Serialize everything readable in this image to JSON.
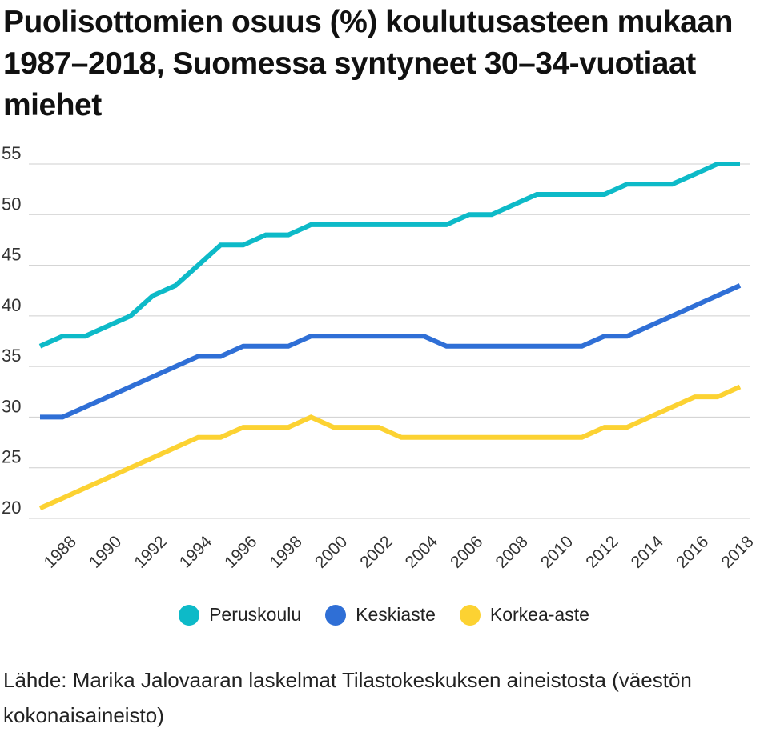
{
  "title": "Puolisottomien osuus (%) koulutusasteen mukaan 1987–2018, Suomessa syntyneet 30–34-vuotiaat miehet",
  "source": "Lähde: Marika Jalovaaran laskelmat Tilastokeskuksen aineistosta (väestön kokonaisaineisto)",
  "chart_data": {
    "type": "line",
    "x": [
      1987,
      1988,
      1989,
      1990,
      1991,
      1992,
      1993,
      1994,
      1995,
      1996,
      1997,
      1998,
      1999,
      2000,
      2001,
      2002,
      2003,
      2004,
      2005,
      2006,
      2007,
      2008,
      2009,
      2010,
      2011,
      2012,
      2013,
      2014,
      2015,
      2016,
      2017,
      2018
    ],
    "xticks": [
      "1988",
      "1990",
      "1992",
      "1994",
      "1996",
      "1998",
      "2000",
      "2002",
      "2004",
      "2006",
      "2008",
      "2010",
      "2012",
      "2014",
      "2016",
      "2018"
    ],
    "yticks": [
      "20",
      "25",
      "30",
      "35",
      "40",
      "45",
      "50",
      "55"
    ],
    "ylim": [
      19.5,
      55.5
    ],
    "grid": true,
    "legend_position": "bottom",
    "series": [
      {
        "name": "Peruskoulu",
        "color": "#0dbac8",
        "values": [
          37,
          38,
          38,
          39,
          40,
          42,
          43,
          45,
          47,
          47,
          48,
          48,
          49,
          49,
          49,
          49,
          49,
          49,
          49,
          50,
          50,
          51,
          52,
          52,
          52,
          52,
          53,
          53,
          53,
          54,
          55,
          55
        ]
      },
      {
        "name": "Keskiaste",
        "color": "#2f6fd6",
        "values": [
          30,
          30,
          31,
          32,
          33,
          34,
          35,
          36,
          36,
          37,
          37,
          37,
          38,
          38,
          38,
          38,
          38,
          38,
          37,
          37,
          37,
          37,
          37,
          37,
          37,
          38,
          38,
          39,
          40,
          41,
          42,
          43
        ]
      },
      {
        "name": "Korkea-aste",
        "color": "#fcd232",
        "values": [
          21,
          22,
          23,
          24,
          25,
          26,
          27,
          28,
          28,
          29,
          29,
          29,
          30,
          29,
          29,
          29,
          28,
          28,
          28,
          28,
          28,
          28,
          28,
          28,
          28,
          29,
          29,
          30,
          31,
          32,
          32,
          33
        ]
      }
    ]
  }
}
